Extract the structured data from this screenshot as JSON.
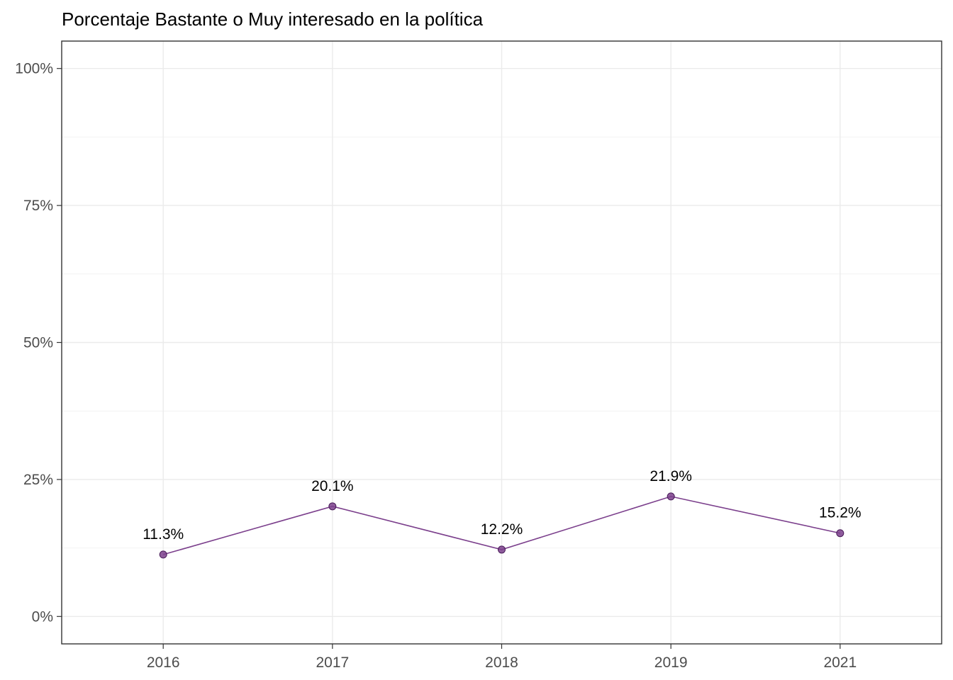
{
  "chart_data": {
    "type": "line",
    "title": "Porcentaje Bastante o Muy interesado en la política",
    "xlabel": "",
    "ylabel": "",
    "categories": [
      "2016",
      "2017",
      "2018",
      "2019",
      "2021"
    ],
    "series": [
      {
        "values": [
          11.3,
          20.1,
          12.2,
          21.9,
          15.2
        ],
        "labels": [
          "11.3%",
          "20.1%",
          "12.2%",
          "21.9%",
          "15.2%"
        ],
        "color": "#7b3f8c"
      }
    ],
    "ylim": [
      -5,
      105
    ],
    "yticks": [
      0,
      25,
      50,
      75,
      100
    ],
    "ytick_labels": [
      "0%",
      "25%",
      "50%",
      "75%",
      "100%"
    ],
    "grid": true,
    "legend": "none"
  }
}
